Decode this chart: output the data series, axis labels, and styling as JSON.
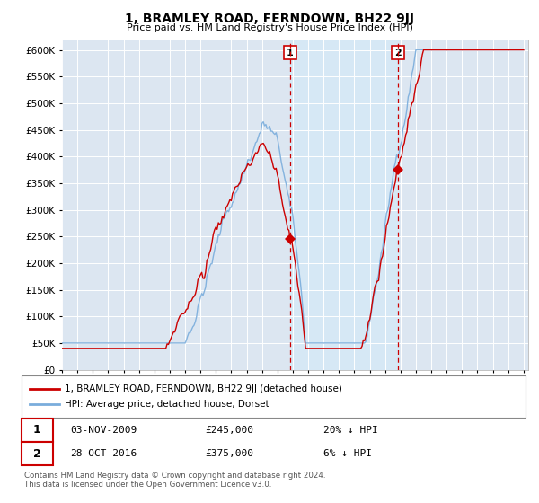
{
  "title": "1, BRAMLEY ROAD, FERNDOWN, BH22 9JJ",
  "subtitle": "Price paid vs. HM Land Registry's House Price Index (HPI)",
  "ylim": [
    0,
    620000
  ],
  "yticks": [
    0,
    50000,
    100000,
    150000,
    200000,
    250000,
    300000,
    350000,
    400000,
    450000,
    500000,
    550000,
    600000
  ],
  "sale1_year": 2009.83,
  "sale1_value": 245000,
  "sale2_year": 2016.83,
  "sale2_value": 375000,
  "annotation1": {
    "date": "03-NOV-2009",
    "price": "£245,000",
    "pct": "20% ↓ HPI"
  },
  "annotation2": {
    "date": "28-OCT-2016",
    "price": "£375,000",
    "pct": "6% ↓ HPI"
  },
  "legend_line1": "1, BRAMLEY ROAD, FERNDOWN, BH22 9JJ (detached house)",
  "legend_line2": "HPI: Average price, detached house, Dorset",
  "footer": "Contains HM Land Registry data © Crown copyright and database right 2024.\nThis data is licensed under the Open Government Licence v3.0.",
  "hpi_color": "#7aaddc",
  "price_color": "#cc0000",
  "vline_color": "#cc0000",
  "shade_color": "#d6e8f5",
  "bg_color": "#dce6f1",
  "plot_bg": "#ffffff",
  "grid_color": "#ffffff"
}
